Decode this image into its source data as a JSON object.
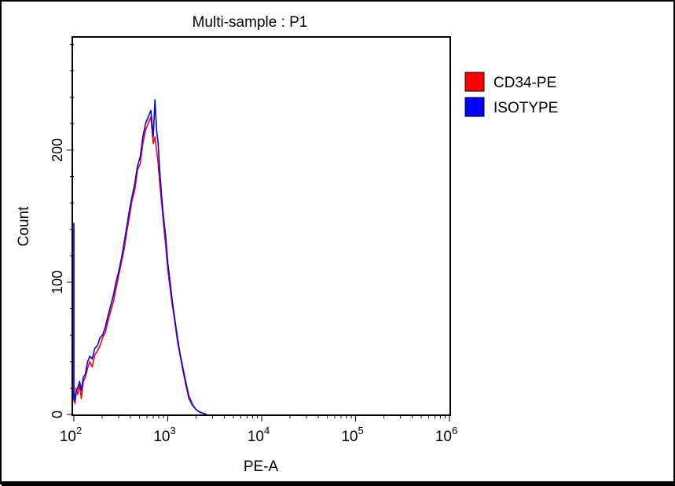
{
  "chart_data": {
    "type": "line",
    "title": "Multi-sample : P1",
    "xlabel": "PE-A",
    "ylabel": "Count",
    "x_scale": "log",
    "xlim": [
      100,
      1000000
    ],
    "ylim": [
      0,
      285
    ],
    "x_ticks": [
      {
        "value": 100,
        "base": "10",
        "exp": "2"
      },
      {
        "value": 1000,
        "base": "10",
        "exp": "3"
      },
      {
        "value": 10000,
        "base": "10",
        "exp": "4"
      },
      {
        "value": 100000,
        "base": "10",
        "exp": "5"
      },
      {
        "value": 1000000,
        "base": "10",
        "exp": "6"
      }
    ],
    "y_ticks": [
      0,
      100,
      200
    ],
    "legend_position": "top-right",
    "grid": false,
    "series": [
      {
        "name": "CD34-PE",
        "color": "#ff0000",
        "x": [
          100,
          100,
          101,
          103,
          106,
          110,
          115,
          120,
          126,
          132,
          140,
          148,
          157,
          167,
          178,
          190,
          202,
          216,
          230,
          246,
          263,
          281,
          300,
          321,
          343,
          366,
          391,
          417,
          446,
          476,
          509,
          543,
          580,
          619,
          661,
          700,
          730,
          760,
          790,
          820,
          860,
          900,
          950,
          1000,
          1060,
          1120,
          1190,
          1270,
          1350,
          1450,
          1560,
          1680,
          1820,
          1980,
          2150,
          2350,
          2600
        ],
        "y": [
          140,
          10,
          14,
          8,
          20,
          15,
          22,
          12,
          25,
          28,
          35,
          40,
          36,
          45,
          48,
          52,
          58,
          62,
          70,
          78,
          85,
          95,
          105,
          115,
          125,
          138,
          150,
          162,
          170,
          185,
          190,
          205,
          215,
          220,
          225,
          205,
          210,
          200,
          190,
          175,
          160,
          145,
          128,
          110,
          95,
          82,
          70,
          55,
          45,
          33,
          22,
          12,
          7,
          4,
          2,
          1,
          0
        ]
      },
      {
        "name": "ISOTYPE",
        "color": "#0000ff",
        "x": [
          100,
          100,
          101,
          103,
          106,
          110,
          115,
          120,
          126,
          132,
          140,
          148,
          157,
          167,
          178,
          190,
          202,
          216,
          230,
          246,
          263,
          281,
          300,
          321,
          343,
          366,
          391,
          417,
          446,
          476,
          509,
          543,
          580,
          619,
          661,
          700,
          730,
          760,
          790,
          820,
          860,
          900,
          950,
          1000,
          1060,
          1120,
          1190,
          1270,
          1350,
          1450,
          1560,
          1680,
          1820,
          1980,
          2150,
          2350,
          2600
        ],
        "y": [
          145,
          12,
          16,
          10,
          18,
          20,
          25,
          18,
          28,
          30,
          40,
          44,
          42,
          50,
          52,
          58,
          60,
          66,
          74,
          82,
          90,
          100,
          108,
          118,
          130,
          142,
          155,
          165,
          175,
          188,
          195,
          210,
          220,
          225,
          230,
          210,
          238,
          215,
          205,
          185,
          165,
          150,
          135,
          115,
          100,
          85,
          72,
          58,
          46,
          35,
          24,
          14,
          8,
          4,
          2,
          1,
          0
        ]
      }
    ]
  }
}
